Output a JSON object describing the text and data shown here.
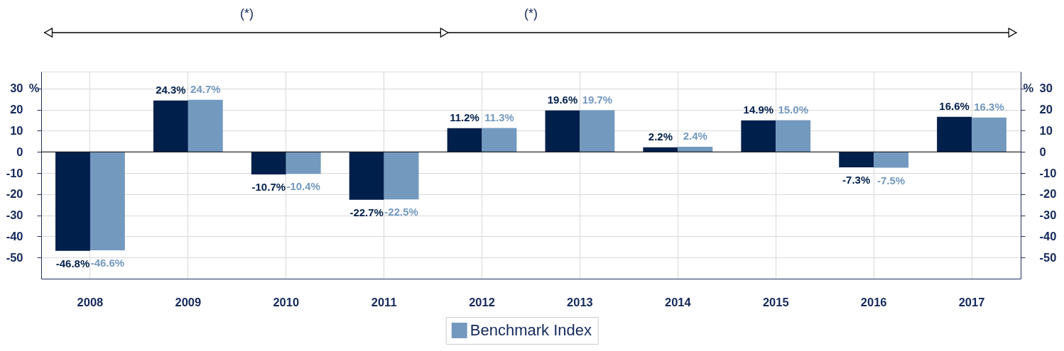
{
  "chart_data": {
    "type": "bar",
    "categories": [
      "2008",
      "2009",
      "2010",
      "2011",
      "2012",
      "2013",
      "2014",
      "2015",
      "2016",
      "2017"
    ],
    "series": [
      {
        "color": "#001f4b",
        "values": [
          -46.8,
          24.3,
          -10.7,
          -22.7,
          11.2,
          19.6,
          2.2,
          14.9,
          -7.3,
          16.6
        ],
        "value_labels": [
          "-46.8%",
          "24.3%",
          "-10.7%",
          "-22.7%",
          "11.2%",
          "19.6%",
          "2.2%",
          "14.9%",
          "-7.3%",
          "16.6%"
        ]
      },
      {
        "name": "Benchmark Index",
        "color": "#7399bf",
        "values": [
          -46.6,
          24.7,
          -10.4,
          -22.5,
          11.3,
          19.7,
          2.4,
          15.0,
          -7.5,
          16.3
        ],
        "value_labels": [
          "-46.6%",
          "24.7%",
          "-10.4%",
          "-22.5%",
          "11.3%",
          "19.7%",
          "2.4%",
          "15.0%",
          "-7.5%",
          "16.3%"
        ]
      }
    ],
    "ylim": [
      -60,
      38
    ],
    "yticks": [
      -50,
      -40,
      -30,
      -20,
      -10,
      0,
      10,
      20,
      30
    ],
    "ylabel": "%",
    "y2lim": [
      -60,
      38
    ],
    "y2ticks": [
      -50,
      -40,
      -30,
      -20,
      -10,
      0,
      10,
      20,
      30
    ],
    "y2label": "%",
    "grid": true,
    "legend": "bottom",
    "ref_lines": [
      {
        "axis": "y",
        "value": 0,
        "color": "#000000"
      }
    ],
    "annotations": [
      "(*)",
      "(*)"
    ]
  }
}
